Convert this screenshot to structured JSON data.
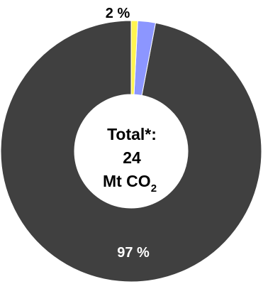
{
  "chart_data": {
    "type": "pie",
    "donut": true,
    "slices": [
      {
        "label": "97 %",
        "value": 97,
        "color": "#404040",
        "label_color": "#ffffff"
      },
      {
        "label": "2 %",
        "value": 2.2,
        "color": "#8c96ff",
        "label_color": "#000000"
      },
      {
        "label": "",
        "value": 0.8,
        "color": "#fff44f",
        "label_color": "#000000"
      }
    ],
    "center_text": {
      "line1": "Total*:",
      "line2": "24",
      "line3_main": "Mt CO",
      "line3_sub": "2"
    },
    "start_angle_deg": 0,
    "direction": "counterclockwise"
  }
}
